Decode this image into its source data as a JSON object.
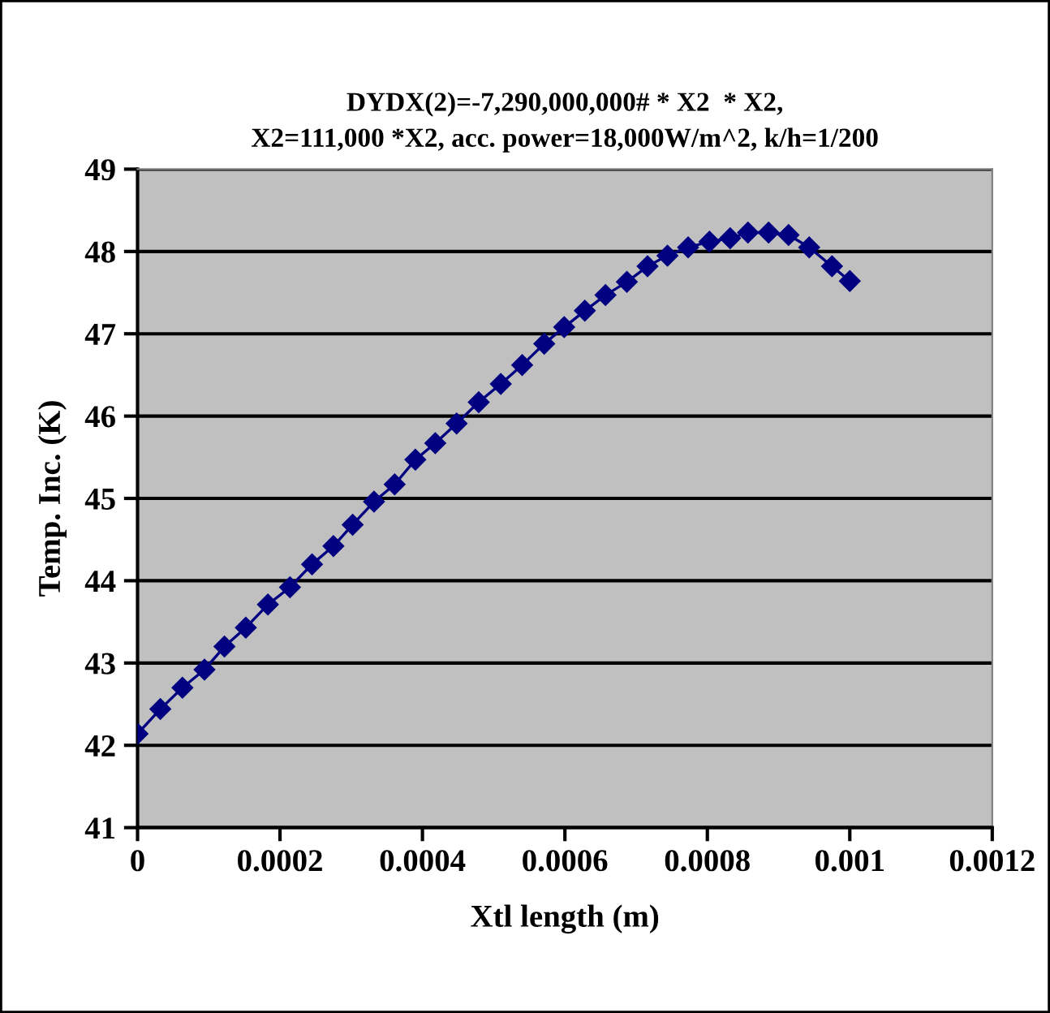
{
  "chart_data": {
    "type": "line",
    "title": "DYDX(2)=-7,290,000,000# * X2  * X2,\nX2=111,000 *X2, acc. power=18,000W/m^2, k/h=1/200",
    "xlabel": "Xtl length (m)",
    "ylabel": "Temp. Inc. (K)",
    "series": [
      {
        "color": "#000080",
        "x": [
          0,
          3.2e-05,
          6.3e-05,
          9.4e-05,
          0.000122,
          0.000152,
          0.000183,
          0.000214,
          0.000245,
          0.000275,
          0.000302,
          0.000332,
          0.000361,
          0.00039,
          0.000418,
          0.000448,
          0.000479,
          0.00051,
          0.00054,
          0.000571,
          0.000599,
          0.000628,
          0.000657,
          0.000687,
          0.000716,
          0.000744,
          0.000773,
          0.000803,
          0.000832,
          0.000857,
          0.000886,
          0.000914,
          0.000943,
          0.000975,
          0.001
        ],
        "values": [
          42.14,
          42.44,
          42.7,
          42.92,
          43.2,
          43.43,
          43.71,
          43.92,
          44.2,
          44.42,
          44.68,
          44.96,
          45.17,
          45.47,
          45.67,
          45.91,
          46.17,
          46.39,
          46.62,
          46.88,
          47.08,
          47.28,
          47.47,
          47.63,
          47.82,
          47.95,
          48.05,
          48.12,
          48.16,
          48.23,
          48.23,
          48.2,
          48.05,
          47.82,
          47.64
        ]
      }
    ],
    "xlim": [
      0,
      0.0012
    ],
    "xticks": [
      0,
      0.0002,
      0.0004,
      0.0006,
      0.0008,
      0.001,
      0.0012
    ],
    "ylim": [
      41,
      49
    ],
    "yticks": [
      41,
      42,
      43,
      44,
      45,
      46,
      47,
      48,
      49
    ],
    "grid": "y",
    "legend": false,
    "marker": "diamond",
    "line_style": "solid"
  }
}
